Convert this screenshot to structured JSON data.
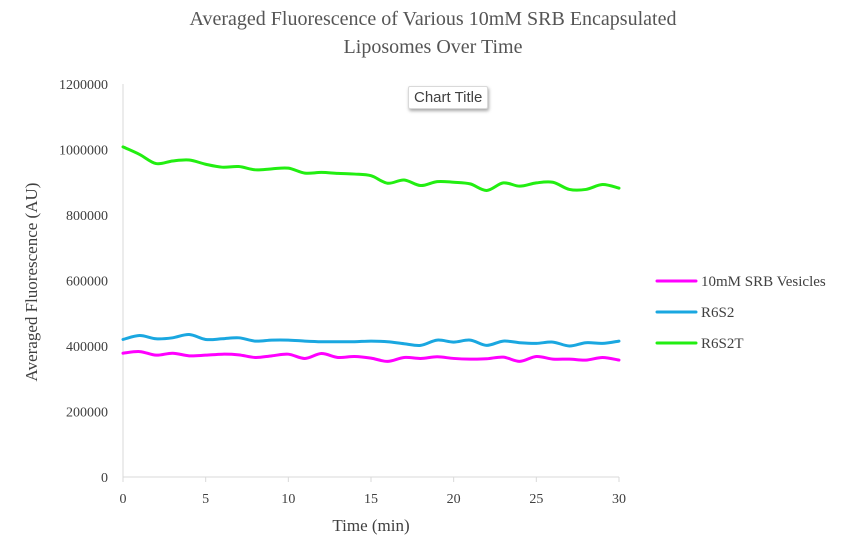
{
  "chart_data": {
    "type": "line",
    "title_lines": [
      "Averaged Fluorescence of Various 10mM SRB Encapsulated",
      "Liposomes Over Time"
    ],
    "chart_title_placeholder": "Chart Title",
    "xlabel": "Time (min)",
    "ylabel": "Averaged Fluorescence (AU)",
    "xlim": [
      0,
      30
    ],
    "ylim": [
      0,
      1200000
    ],
    "x_ticks": [
      0,
      5,
      10,
      15,
      20,
      25,
      30
    ],
    "y_ticks": [
      0,
      200000,
      400000,
      600000,
      800000,
      1000000,
      1200000
    ],
    "grid": false,
    "legend_position": "right",
    "x": [
      0,
      1,
      2,
      3,
      4,
      5,
      6,
      7,
      8,
      9,
      10,
      11,
      12,
      13,
      14,
      15,
      16,
      17,
      18,
      19,
      20,
      21,
      22,
      23,
      24,
      25,
      26,
      27,
      28,
      29,
      30
    ],
    "series": [
      {
        "name": "10mM SRB Vesicles",
        "color": "#ff00ff",
        "values": [
          378000,
          383000,
          372000,
          378000,
          370000,
          372000,
          375000,
          373000,
          365000,
          370000,
          375000,
          362000,
          377000,
          365000,
          368000,
          363000,
          353000,
          365000,
          362000,
          367000,
          362000,
          360000,
          361000,
          366000,
          353000,
          368000,
          360000,
          360000,
          357000,
          365000,
          357000
        ]
      },
      {
        "name": "R6S2",
        "color": "#1aa7e0",
        "values": [
          420000,
          432000,
          422000,
          425000,
          435000,
          420000,
          422000,
          425000,
          415000,
          418000,
          418000,
          415000,
          413000,
          413000,
          413000,
          415000,
          413000,
          407000,
          402000,
          418000,
          412000,
          418000,
          402000,
          415000,
          410000,
          408000,
          412000,
          400000,
          410000,
          408000,
          415000
        ]
      },
      {
        "name": "R6S2T",
        "color": "#22ee11",
        "values": [
          1008000,
          985000,
          957000,
          965000,
          968000,
          955000,
          946000,
          948000,
          938000,
          941000,
          943000,
          928000,
          930000,
          927000,
          925000,
          920000,
          897000,
          907000,
          890000,
          902000,
          900000,
          895000,
          875000,
          898000,
          888000,
          898000,
          900000,
          878000,
          878000,
          893000,
          882000
        ]
      }
    ]
  }
}
